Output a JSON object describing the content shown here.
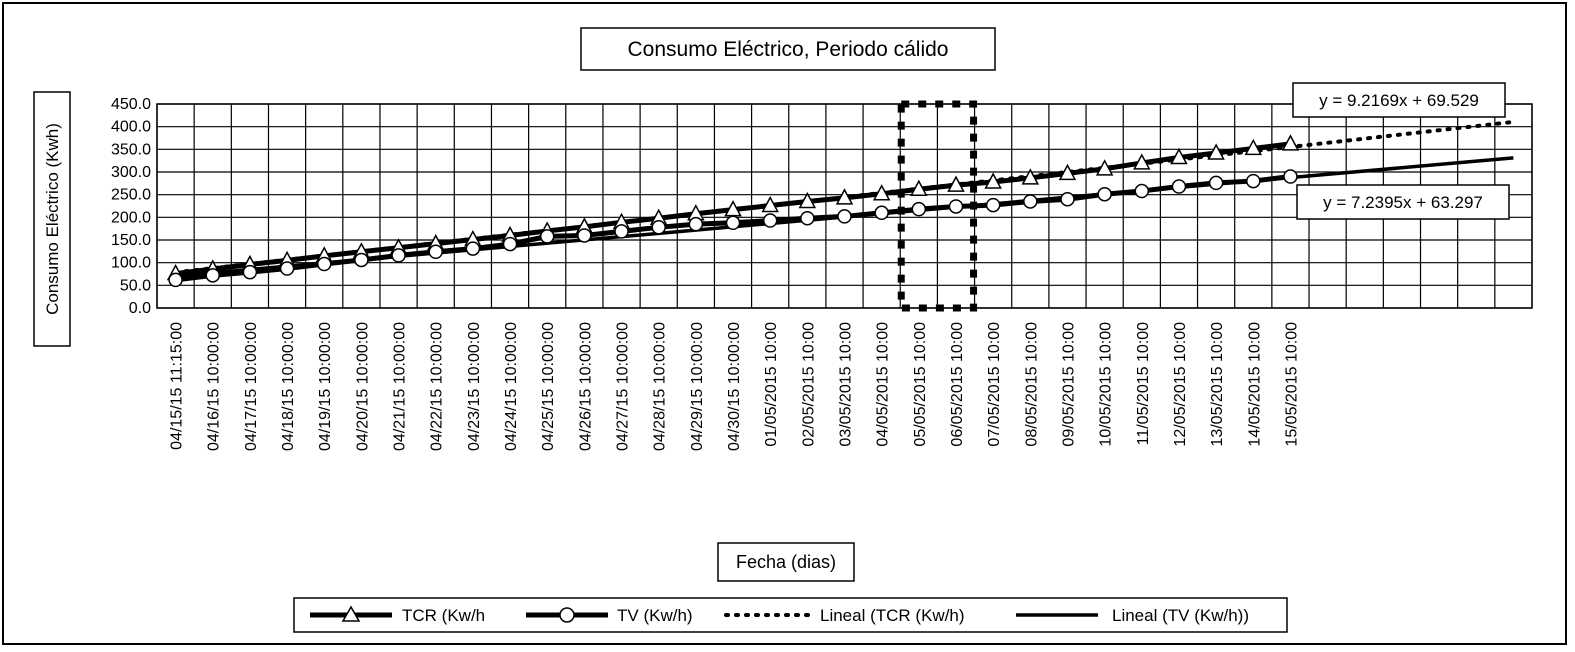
{
  "chart_data": {
    "type": "line",
    "title": "Consumo Eléctrico, Periodo cálido",
    "xlabel": "Fecha (dias)",
    "ylabel": "Consumo Eléctrico (Kwh)",
    "ylim": [
      0,
      450
    ],
    "ytick_step": 50,
    "ytick_labels": [
      "0.0",
      "50.0",
      "100.0",
      "150.0",
      "200.0",
      "250.0",
      "300.0",
      "350.0",
      "400.0",
      "450.0"
    ],
    "grid": true,
    "legend_position": "bottom",
    "categories": [
      "04/15/15 11:15:00",
      "04/16/15 10:00:00",
      "04/17/15 10:00:00",
      "04/18/15 10:00:00",
      "04/19/15 10:00:00",
      "04/20/15 10:00:00",
      "04/21/15 10:00:00",
      "04/22/15 10:00:00",
      "04/23/15 10:00:00",
      "04/24/15 10:00:00",
      "04/25/15 10:00:00",
      "04/26/15 10:00:00",
      "04/27/15 10:00:00",
      "04/28/15 10:00:00",
      "04/29/15 10:00:00",
      "04/30/15 10:00:00",
      "01/05/2015 10:00",
      "02/05/2015 10:00",
      "03/05/2015 10:00",
      "04/05/2015 10:00",
      "05/05/2015 10:00",
      "06/05/2015 10:00",
      "07/05/2015 10:00",
      "08/05/2015 10:00",
      "09/05/2015 10:00",
      "10/05/2015 10:00",
      "11/05/2015 10:00",
      "12/05/2015 10:00",
      "13/05/2015 10:00",
      "14/05/2015 10:00",
      "15/05/2015 10:00"
    ],
    "x_category_slots": 37,
    "series": [
      {
        "name": "TCR (Kw/h",
        "marker": "triangle",
        "values": [
          76,
          86,
          96,
          105,
          115,
          124,
          133,
          142,
          151,
          160,
          170,
          179,
          189,
          198,
          208,
          217,
          226,
          235,
          243,
          252,
          262,
          271,
          278,
          287,
          297,
          307,
          320,
          332,
          342,
          352,
          362
        ]
      },
      {
        "name": "TV (Kw/h)",
        "marker": "circle",
        "values": [
          62,
          72,
          79,
          87,
          97,
          106,
          116,
          124,
          131,
          141,
          158,
          160,
          169,
          178,
          185,
          188,
          193,
          198,
          202,
          210,
          218,
          224,
          227,
          235,
          240,
          251,
          258,
          268,
          276,
          280,
          290
        ]
      }
    ],
    "trendlines": [
      {
        "name": "Lineal (TCR (Kw/h)",
        "style": "dotted",
        "equation": "y = 9.2169x  + 69.529",
        "slope": 9.2169,
        "intercept": 69.529
      },
      {
        "name": "Lineal (TV (Kw/h))",
        "style": "solid",
        "equation": "y = 7.2395x  + 63.297",
        "slope": 7.2395,
        "intercept": 63.297
      }
    ],
    "highlight_categories": [
      "05/05/2015 10:00",
      "06/05/2015 10:00"
    ]
  }
}
